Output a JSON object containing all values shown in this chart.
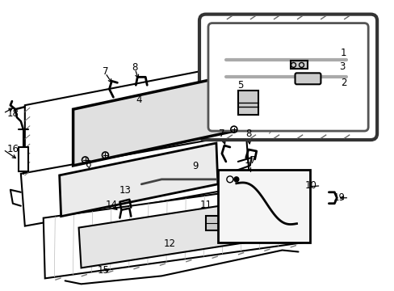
{
  "bg": "#ffffff",
  "lc": "#000000",
  "fig_w": 4.89,
  "fig_h": 3.6,
  "dpi": 100,
  "label_fs": 8.5,
  "hatch_color": "#888888",
  "gray_fill": "#e8e8e8",
  "inset_fill": "#f5f5f5"
}
